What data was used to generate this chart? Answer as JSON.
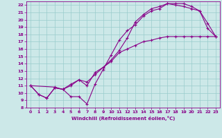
{
  "xlabel": "Windchill (Refroidissement éolien,°C)",
  "bg_color": "#cce8e8",
  "line_color": "#880088",
  "grid_color": "#99cccc",
  "xlim": [
    -0.5,
    23.5
  ],
  "ylim": [
    8,
    22.5
  ],
  "xticks": [
    0,
    1,
    2,
    3,
    4,
    5,
    6,
    7,
    8,
    9,
    10,
    11,
    12,
    13,
    14,
    15,
    16,
    17,
    18,
    19,
    20,
    21,
    22,
    23
  ],
  "yticks": [
    8,
    9,
    10,
    11,
    12,
    13,
    14,
    15,
    16,
    17,
    18,
    19,
    20,
    21,
    22
  ],
  "line1_x": [
    0,
    1,
    2,
    3,
    4,
    5,
    6,
    7,
    8,
    9,
    10,
    11,
    12,
    13,
    14,
    15,
    16,
    17,
    18,
    19,
    20,
    21,
    22,
    23
  ],
  "line1_y": [
    11.0,
    9.8,
    9.3,
    10.7,
    10.5,
    9.5,
    9.5,
    8.5,
    11.2,
    13.2,
    15.2,
    17.2,
    18.5,
    19.3,
    20.5,
    21.2,
    21.5,
    22.2,
    22.2,
    22.2,
    21.8,
    21.2,
    19.5,
    17.7
  ],
  "line2_x": [
    0,
    1,
    2,
    3,
    4,
    5,
    6,
    7,
    8,
    9,
    10,
    11,
    12,
    13,
    14,
    15,
    16,
    17,
    18,
    19,
    20,
    21,
    22,
    23
  ],
  "line2_y": [
    11.0,
    9.8,
    9.3,
    10.7,
    10.5,
    11.2,
    11.8,
    11.5,
    12.5,
    13.5,
    14.3,
    15.5,
    16.0,
    16.5,
    17.0,
    17.2,
    17.5,
    17.7,
    17.7,
    17.7,
    17.7,
    17.7,
    17.7,
    17.7
  ],
  "line3_x": [
    0,
    3,
    4,
    5,
    6,
    7,
    8,
    9,
    10,
    11,
    12,
    13,
    14,
    15,
    16,
    17,
    18,
    19,
    20,
    21,
    22,
    23
  ],
  "line3_y": [
    11.0,
    10.8,
    10.5,
    11.0,
    11.8,
    11.0,
    12.8,
    13.5,
    14.5,
    15.8,
    17.5,
    19.7,
    20.7,
    21.5,
    21.8,
    22.2,
    22.0,
    21.8,
    21.5,
    21.2,
    18.8,
    17.7
  ]
}
